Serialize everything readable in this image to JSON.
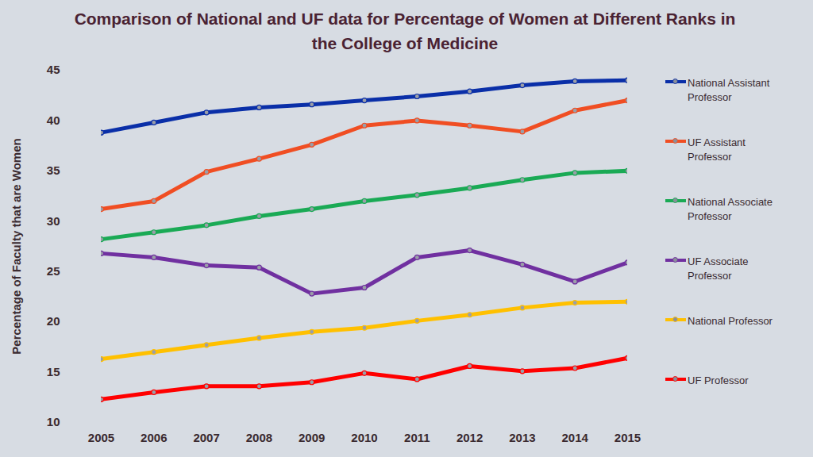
{
  "chart_data": {
    "type": "line",
    "title": "Comparison of National and UF data for Percentage of Women at Different Ranks in the College of Medicine",
    "y_label": "Percentage of Faculty that are Women",
    "x": [
      2005,
      2006,
      2007,
      2008,
      2009,
      2010,
      2011,
      2012,
      2013,
      2014,
      2015
    ],
    "xlim": [
      2005,
      2015
    ],
    "xticks": [
      2005,
      2006,
      2007,
      2008,
      2009,
      2010,
      2011,
      2012,
      2013,
      2014,
      2015
    ],
    "ylim": [
      10,
      45
    ],
    "yticks": [
      10,
      15,
      20,
      25,
      30,
      35,
      40,
      45
    ],
    "grid": false,
    "legend": "right",
    "marker": "circle",
    "series": [
      {
        "name": "National Assistant Professor",
        "color": "#0a2fa8",
        "values": [
          38.8,
          39.8,
          40.8,
          41.3,
          41.6,
          42.0,
          42.4,
          42.9,
          43.5,
          43.9,
          44.0
        ]
      },
      {
        "name": "UF Assistant Professor",
        "color": "#f04e23",
        "values": [
          31.2,
          32.0,
          34.9,
          36.2,
          37.6,
          39.5,
          40.0,
          39.5,
          38.9,
          41.0,
          42.0
        ]
      },
      {
        "name": "National Associate Professor",
        "color": "#1aaa55",
        "values": [
          28.2,
          28.9,
          29.6,
          30.5,
          31.2,
          32.0,
          32.6,
          33.3,
          34.1,
          34.8,
          35.0
        ]
      },
      {
        "name": "UF Associate Professor",
        "color": "#7030a0",
        "values": [
          26.8,
          26.4,
          25.6,
          25.4,
          22.8,
          23.4,
          26.4,
          27.1,
          25.7,
          24.0,
          25.9
        ]
      },
      {
        "name": "National Professor",
        "color": "#ffc000",
        "values": [
          16.3,
          17.0,
          17.7,
          18.4,
          19.0,
          19.4,
          20.1,
          20.7,
          21.4,
          21.9,
          22.0
        ]
      },
      {
        "name": "UF Professor",
        "color": "#ff0000",
        "values": [
          12.3,
          13.0,
          13.6,
          13.6,
          14.0,
          14.9,
          14.3,
          15.6,
          15.1,
          15.4,
          16.4
        ]
      }
    ]
  }
}
